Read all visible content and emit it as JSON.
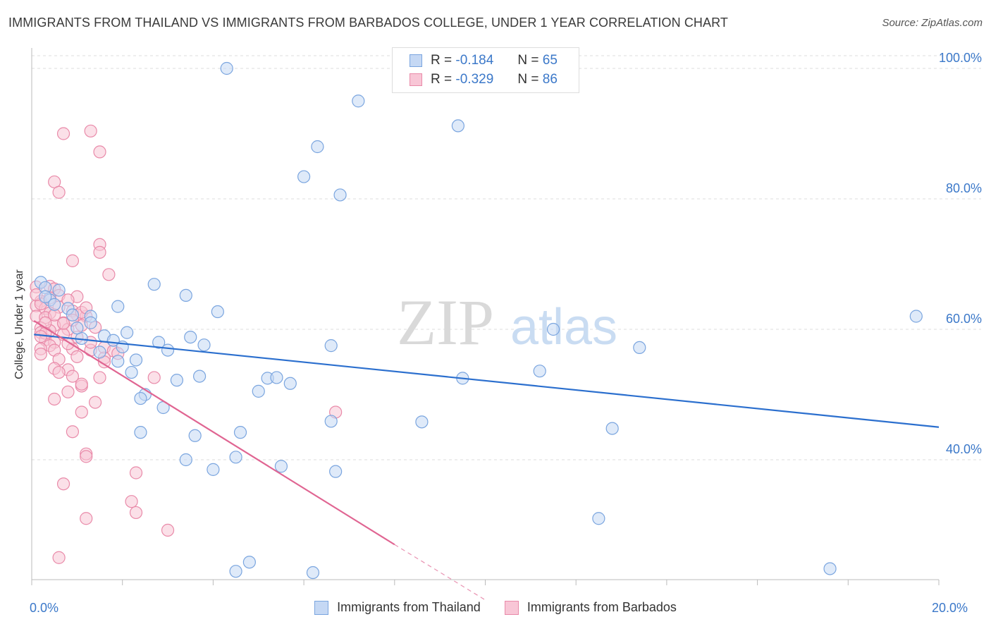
{
  "title": "IMMIGRANTS FROM THAILAND VS IMMIGRANTS FROM BARBADOS COLLEGE, UNDER 1 YEAR CORRELATION CHART",
  "source": "Source: ZipAtlas.com",
  "watermark": {
    "zip": "ZIP",
    "atlas": "atlas"
  },
  "legend_top": {
    "rows": [
      {
        "r_label": "R =",
        "r_value": "-0.184",
        "n_label": "N =",
        "n_value": "65"
      },
      {
        "r_label": "R =",
        "r_value": "-0.329",
        "n_label": "N =",
        "n_value": "86"
      }
    ]
  },
  "legend_bottom": {
    "thailand": "Immigrants from Thailand",
    "barbados": "Immigrants from Barbados"
  },
  "colors": {
    "blue_fill": "#c5d8f4",
    "blue_stroke": "#7aa5df",
    "blue_line": "#2b6fce",
    "pink_fill": "#f8c6d6",
    "pink_stroke": "#e98aa9",
    "pink_line": "#e06592",
    "axis_text": "#3b78c9",
    "grid": "#dddddd"
  },
  "chart_data": {
    "type": "scatter",
    "title": "IMMIGRANTS FROM THAILAND VS IMMIGRANTS FROM BARBADOS COLLEGE, UNDER 1 YEAR CORRELATION CHART",
    "xlabel": "",
    "ylabel": "College, Under 1 year",
    "xlim": [
      0,
      20
    ],
    "ylim": [
      20,
      102
    ],
    "x_tick_labels": [
      "0.0%",
      "20.0%"
    ],
    "y_ticks": [
      40,
      60,
      80,
      100
    ],
    "y_tick_labels": [
      "40.0%",
      "60.0%",
      "80.0%",
      "100.0%"
    ],
    "series": [
      {
        "name": "Immigrants from Thailand",
        "color": "blue",
        "r": -0.184,
        "n": 65,
        "trend": {
          "x0": 0.05,
          "y0": 59.2,
          "x1": 20.0,
          "y1": 45.0
        },
        "points": [
          [
            4.3,
            100.0
          ],
          [
            7.2,
            95.0
          ],
          [
            9.4,
            91.2
          ],
          [
            6.3,
            88.0
          ],
          [
            6.0,
            83.4
          ],
          [
            6.8,
            80.6
          ],
          [
            19.5,
            62.0
          ],
          [
            0.2,
            67.2
          ],
          [
            0.3,
            66.4
          ],
          [
            0.6,
            66.0
          ],
          [
            0.4,
            64.5
          ],
          [
            0.8,
            63.2
          ],
          [
            1.3,
            62.0
          ],
          [
            1.9,
            63.5
          ],
          [
            2.7,
            66.9
          ],
          [
            3.4,
            65.2
          ],
          [
            4.1,
            62.7
          ],
          [
            0.9,
            62.2
          ],
          [
            1.3,
            61.0
          ],
          [
            1.1,
            58.6
          ],
          [
            1.6,
            59.0
          ],
          [
            1.8,
            58.3
          ],
          [
            2.0,
            57.3
          ],
          [
            2.8,
            58.0
          ],
          [
            3.5,
            58.8
          ],
          [
            3.8,
            57.6
          ],
          [
            3.0,
            56.8
          ],
          [
            2.3,
            55.3
          ],
          [
            1.5,
            56.5
          ],
          [
            1.9,
            55.1
          ],
          [
            2.2,
            53.4
          ],
          [
            3.2,
            52.2
          ],
          [
            3.7,
            52.8
          ],
          [
            5.2,
            52.5
          ],
          [
            5.4,
            52.6
          ],
          [
            5.7,
            51.7
          ],
          [
            5.0,
            50.5
          ],
          [
            2.5,
            50.0
          ],
          [
            2.4,
            49.4
          ],
          [
            2.9,
            48.0
          ],
          [
            6.6,
            57.5
          ],
          [
            11.5,
            60.0
          ],
          [
            13.4,
            57.2
          ],
          [
            9.5,
            52.5
          ],
          [
            11.2,
            53.6
          ],
          [
            2.4,
            44.2
          ],
          [
            3.6,
            43.7
          ],
          [
            4.6,
            44.2
          ],
          [
            6.6,
            45.9
          ],
          [
            8.6,
            45.8
          ],
          [
            12.8,
            44.8
          ],
          [
            3.4,
            40.0
          ],
          [
            4.0,
            38.5
          ],
          [
            4.5,
            40.4
          ],
          [
            5.5,
            39.0
          ],
          [
            6.7,
            38.2
          ],
          [
            12.5,
            31.0
          ],
          [
            4.8,
            24.3
          ],
          [
            4.5,
            22.9
          ],
          [
            6.2,
            22.7
          ],
          [
            17.6,
            23.3
          ],
          [
            0.3,
            65.0
          ],
          [
            0.5,
            63.8
          ],
          [
            2.1,
            59.5
          ],
          [
            1.0,
            60.2
          ]
        ]
      },
      {
        "name": "Immigrants from Barbados",
        "color": "pink",
        "r": -0.329,
        "n": 86,
        "trend": {
          "x0": 0.05,
          "y0": 61.3,
          "x1": 8.0,
          "y1": 27.0,
          "dash_x1": 10.0,
          "dash_y1": 18.5
        },
        "points": [
          [
            1.3,
            90.4
          ],
          [
            0.7,
            90.0
          ],
          [
            1.5,
            87.2
          ],
          [
            0.5,
            82.6
          ],
          [
            0.6,
            81.0
          ],
          [
            1.5,
            73.0
          ],
          [
            1.5,
            71.8
          ],
          [
            0.9,
            70.5
          ],
          [
            1.7,
            68.4
          ],
          [
            0.1,
            66.5
          ],
          [
            0.4,
            66.6
          ],
          [
            0.5,
            66.2
          ],
          [
            0.6,
            65.2
          ],
          [
            1.0,
            65.0
          ],
          [
            0.2,
            64.3
          ],
          [
            0.1,
            63.6
          ],
          [
            0.3,
            63.2
          ],
          [
            0.4,
            62.5
          ],
          [
            0.9,
            62.8
          ],
          [
            1.0,
            62.2
          ],
          [
            1.2,
            62.0
          ],
          [
            0.1,
            62.0
          ],
          [
            0.3,
            61.8
          ],
          [
            0.7,
            61.0
          ],
          [
            0.5,
            60.6
          ],
          [
            0.2,
            60.2
          ],
          [
            0.4,
            59.8
          ],
          [
            0.8,
            60.0
          ],
          [
            1.1,
            60.6
          ],
          [
            0.2,
            59.5
          ],
          [
            0.3,
            58.4
          ],
          [
            0.5,
            58.0
          ],
          [
            0.4,
            57.5
          ],
          [
            0.9,
            57.0
          ],
          [
            1.3,
            56.8
          ],
          [
            1.6,
            57.2
          ],
          [
            1.8,
            56.7
          ],
          [
            0.2,
            57.0
          ],
          [
            0.5,
            56.8
          ],
          [
            1.0,
            55.8
          ],
          [
            0.6,
            55.4
          ],
          [
            1.6,
            55.6
          ],
          [
            0.5,
            54.0
          ],
          [
            0.8,
            53.8
          ],
          [
            1.5,
            52.6
          ],
          [
            0.9,
            52.8
          ],
          [
            2.7,
            52.6
          ],
          [
            1.1,
            51.3
          ],
          [
            1.1,
            51.6
          ],
          [
            0.8,
            50.4
          ],
          [
            0.5,
            49.3
          ],
          [
            1.4,
            48.8
          ],
          [
            1.1,
            47.3
          ],
          [
            6.7,
            47.3
          ],
          [
            0.9,
            44.3
          ],
          [
            1.2,
            40.9
          ],
          [
            1.2,
            40.5
          ],
          [
            2.3,
            38.0
          ],
          [
            0.7,
            36.3
          ],
          [
            2.2,
            33.6
          ],
          [
            2.3,
            31.9
          ],
          [
            1.2,
            31.0
          ],
          [
            3.0,
            29.2
          ],
          [
            0.6,
            25.0
          ],
          [
            0.2,
            63.9
          ],
          [
            0.6,
            63.4
          ],
          [
            0.8,
            64.5
          ],
          [
            1.1,
            62.6
          ],
          [
            0.3,
            61.0
          ],
          [
            0.7,
            59.2
          ],
          [
            1.3,
            58.0
          ],
          [
            0.2,
            56.2
          ],
          [
            0.6,
            53.4
          ],
          [
            1.0,
            58.8
          ],
          [
            1.9,
            56.3
          ],
          [
            0.9,
            61.4
          ],
          [
            0.1,
            65.3
          ],
          [
            0.4,
            64.8
          ],
          [
            0.7,
            60.9
          ],
          [
            1.2,
            63.3
          ],
          [
            0.5,
            62.2
          ],
          [
            0.3,
            59.4
          ],
          [
            1.6,
            55.0
          ],
          [
            0.8,
            57.8
          ],
          [
            1.4,
            60.3
          ],
          [
            0.2,
            58.9
          ]
        ]
      }
    ]
  }
}
